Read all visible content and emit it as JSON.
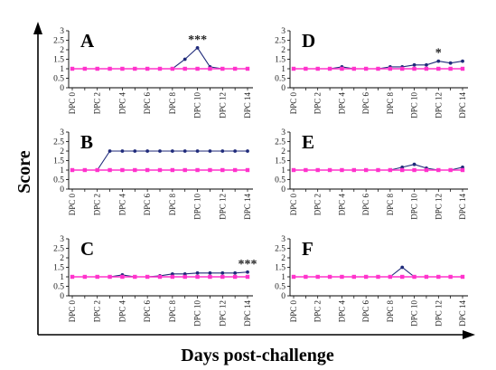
{
  "figure": {
    "ylabel": "Score",
    "xlabel": "Days post-challenge",
    "colors": {
      "series_a": "#1f2a7a",
      "series_b": "#ff33cc",
      "axis": "#000000"
    }
  },
  "chart_data": [
    {
      "type": "line",
      "panel_label": "A",
      "x_tick_labels": [
        "DPC 0",
        "DPC 2",
        "DPC 4",
        "DPC 6",
        "DPC 8",
        "DPC 10",
        "DPC 12",
        "DPC 14"
      ],
      "x": [
        0,
        1,
        2,
        3,
        4,
        5,
        6,
        7,
        8,
        9,
        10,
        11,
        12,
        13,
        14
      ],
      "y_ticks": [
        0,
        0.5,
        1,
        1.5,
        2,
        2.5,
        3
      ],
      "ylim": [
        0,
        3
      ],
      "series": [
        {
          "values": [
            1,
            1,
            1,
            1,
            1,
            1,
            1,
            1,
            1,
            1.5,
            2.1,
            1.1,
            1,
            1,
            1
          ]
        },
        {
          "values": [
            1,
            1,
            1,
            1,
            1,
            1,
            1,
            1,
            1,
            1,
            1,
            1,
            1,
            1,
            1
          ]
        }
      ],
      "annotations": [
        {
          "text": "***",
          "x": 10
        }
      ]
    },
    {
      "type": "line",
      "panel_label": "B",
      "x_tick_labels": [
        "DPC 0",
        "DPC 2",
        "DPC 4",
        "DPC 6",
        "DPC 8",
        "DPC 10",
        "DPC 12",
        "DPC 14"
      ],
      "x": [
        0,
        1,
        2,
        3,
        4,
        5,
        6,
        7,
        8,
        9,
        10,
        11,
        12,
        13,
        14
      ],
      "y_ticks": [
        0,
        0.5,
        1,
        1.5,
        2,
        2.5,
        3
      ],
      "ylim": [
        0,
        3
      ],
      "series": [
        {
          "values": [
            1,
            1,
            1,
            2,
            2,
            2,
            2,
            2,
            2,
            2,
            2,
            2,
            2,
            2,
            2
          ]
        },
        {
          "values": [
            1,
            1,
            1,
            1,
            1,
            1,
            1,
            1,
            1,
            1,
            1,
            1,
            1,
            1,
            1
          ]
        }
      ],
      "annotations": []
    },
    {
      "type": "line",
      "panel_label": "C",
      "x_tick_labels": [
        "DPC 0",
        "DPC 2",
        "DPC 4",
        "DPC 6",
        "DPC 8",
        "DPC 10",
        "DPC 12",
        "DPC 14"
      ],
      "x": [
        0,
        1,
        2,
        3,
        4,
        5,
        6,
        7,
        8,
        9,
        10,
        11,
        12,
        13,
        14
      ],
      "y_ticks": [
        0,
        0.5,
        1,
        1.5,
        2,
        2.5,
        3
      ],
      "ylim": [
        0,
        3
      ],
      "series": [
        {
          "values": [
            1,
            1,
            1,
            1,
            1.1,
            1,
            1,
            1.05,
            1.15,
            1.15,
            1.2,
            1.2,
            1.2,
            1.2,
            1.25
          ]
        },
        {
          "values": [
            1,
            1,
            1,
            1,
            1,
            1,
            1,
            1,
            1,
            1,
            1,
            1,
            1,
            1,
            1
          ]
        }
      ],
      "annotations": [
        {
          "text": "***",
          "x": 14
        }
      ]
    },
    {
      "type": "line",
      "panel_label": "D",
      "x_tick_labels": [
        "DPC 0",
        "DPC 2",
        "DPC 4",
        "DPC 6",
        "DPC 8",
        "DPC 10",
        "DPC 12",
        "DPC 14"
      ],
      "x": [
        0,
        1,
        2,
        3,
        4,
        5,
        6,
        7,
        8,
        9,
        10,
        11,
        12,
        13,
        14
      ],
      "y_ticks": [
        0,
        0.5,
        1,
        1.5,
        2,
        2.5,
        3
      ],
      "ylim": [
        0,
        3
      ],
      "series": [
        {
          "values": [
            1,
            1,
            1,
            1,
            1.1,
            1,
            1,
            1,
            1.1,
            1.1,
            1.2,
            1.2,
            1.4,
            1.3,
            1.4
          ]
        },
        {
          "values": [
            1,
            1,
            1,
            1,
            1,
            1,
            1,
            1,
            1,
            1,
            1,
            1,
            1,
            1,
            1
          ]
        }
      ],
      "annotations": [
        {
          "text": "*",
          "x": 12
        }
      ]
    },
    {
      "type": "line",
      "panel_label": "E",
      "x_tick_labels": [
        "DPC 0",
        "DPC 2",
        "DPC 4",
        "DPC 6",
        "DPC 8",
        "DPC 10",
        "DPC 12",
        "DPC 14"
      ],
      "x": [
        0,
        1,
        2,
        3,
        4,
        5,
        6,
        7,
        8,
        9,
        10,
        11,
        12,
        13,
        14
      ],
      "y_ticks": [
        0,
        0.5,
        1,
        1.5,
        2,
        2.5,
        3
      ],
      "ylim": [
        0,
        3
      ],
      "series": [
        {
          "values": [
            1,
            1,
            1,
            1,
            1,
            1,
            1,
            1,
            1,
            1.15,
            1.3,
            1.1,
            1,
            1,
            1.15
          ]
        },
        {
          "values": [
            1,
            1,
            1,
            1,
            1,
            1,
            1,
            1,
            1,
            1,
            1,
            1,
            1,
            1,
            1
          ]
        }
      ],
      "annotations": []
    },
    {
      "type": "line",
      "panel_label": "F",
      "x_tick_labels": [
        "DPC 0",
        "DPC 2",
        "DPC 4",
        "DPC 6",
        "DPC 8",
        "DPC 10",
        "DPC 12",
        "DPC 14"
      ],
      "x": [
        0,
        1,
        2,
        3,
        4,
        5,
        6,
        7,
        8,
        9,
        10,
        11,
        12,
        13,
        14
      ],
      "y_ticks": [
        0,
        0.5,
        1,
        1.5,
        2,
        2.5,
        3
      ],
      "ylim": [
        0,
        3
      ],
      "series": [
        {
          "values": [
            1,
            1,
            1,
            1,
            1,
            1,
            1,
            1,
            1,
            1.5,
            1,
            1,
            1,
            1,
            1
          ]
        },
        {
          "values": [
            1,
            1,
            1,
            1,
            1,
            1,
            1,
            1,
            1,
            1,
            1,
            1,
            1,
            1,
            1
          ]
        }
      ],
      "annotations": []
    }
  ]
}
